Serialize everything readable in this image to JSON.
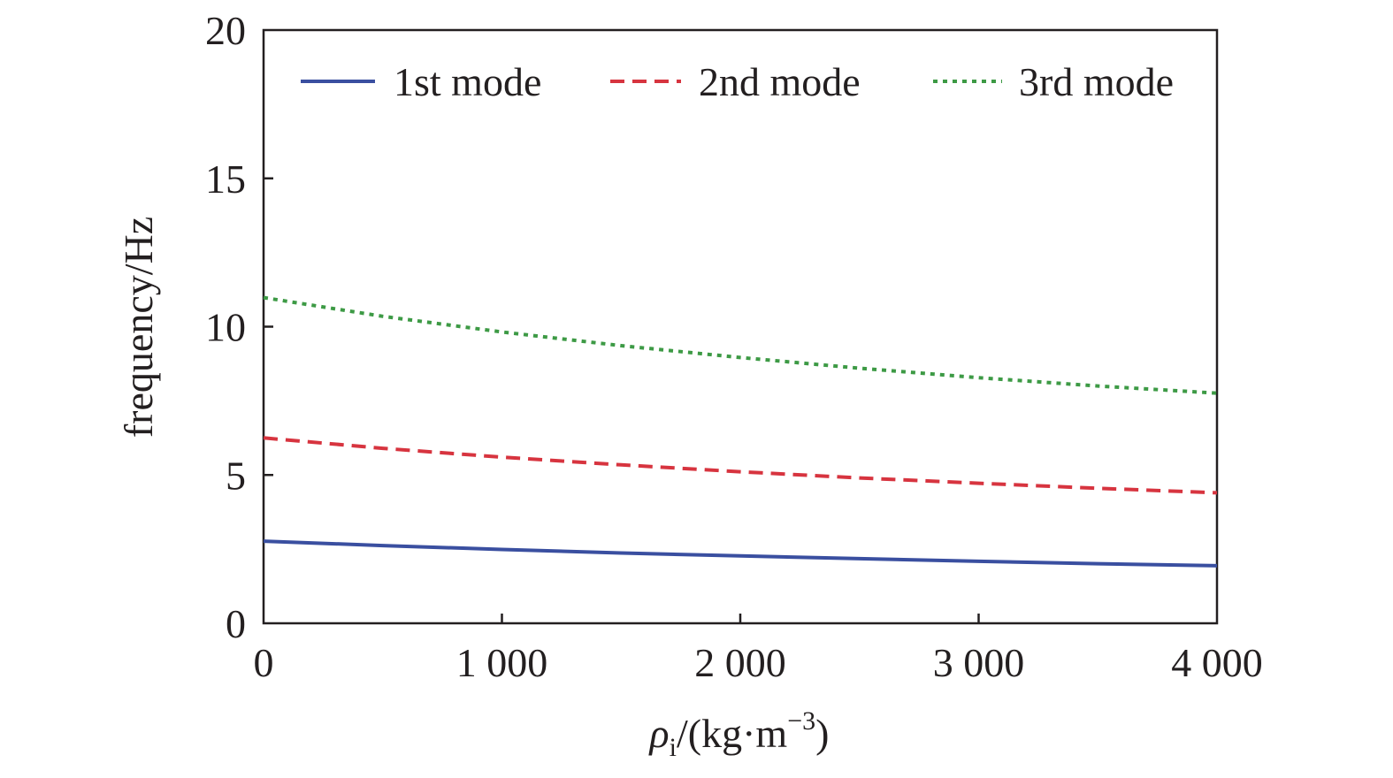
{
  "chart_data": {
    "type": "line",
    "title": "",
    "xlabel": {
      "symbol": "ρ",
      "subscript": "i",
      "unit_open": "/(kg·m",
      "unit_exponent": "−3",
      "unit_close": ")"
    },
    "ylabel": "frequency/Hz",
    "xlim": [
      0,
      4000
    ],
    "ylim": [
      0,
      20
    ],
    "x_ticks": [
      0,
      1000,
      2000,
      3000,
      4000
    ],
    "x_tick_labels": [
      "0",
      "1 000",
      "2 000",
      "3 000",
      "4 000"
    ],
    "y_ticks": [
      0,
      5,
      10,
      15,
      20
    ],
    "y_tick_labels": [
      "0",
      "5",
      "10",
      "15",
      "20"
    ],
    "grid": false,
    "legend_position": "top",
    "x": [
      0,
      500,
      1000,
      1500,
      2000,
      2500,
      3000,
      3500,
      4000
    ],
    "series": [
      {
        "name": "1st mode",
        "color": "#3a4fa0",
        "style": "solid",
        "values": [
          2.77,
          2.62,
          2.49,
          2.37,
          2.27,
          2.18,
          2.09,
          2.01,
          1.94
        ]
      },
      {
        "name": "2nd mode",
        "color": "#d7343f",
        "style": "dashed",
        "values": [
          6.25,
          5.9,
          5.6,
          5.34,
          5.11,
          4.9,
          4.72,
          4.55,
          4.4
        ]
      },
      {
        "name": "3rd mode",
        "color": "#3d9a45",
        "style": "dotted",
        "values": [
          10.98,
          10.35,
          9.82,
          9.36,
          8.96,
          8.6,
          8.28,
          8.0,
          7.76
        ]
      }
    ]
  }
}
